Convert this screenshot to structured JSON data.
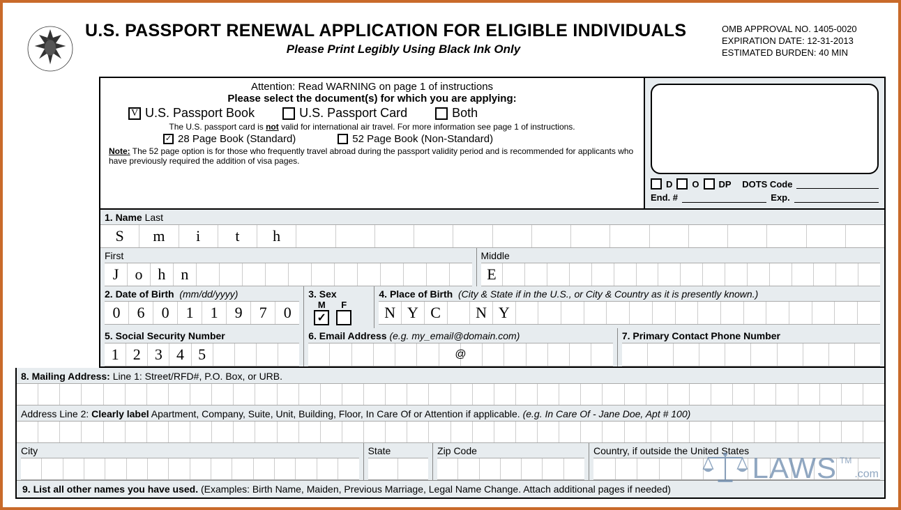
{
  "header": {
    "title": "U.S. PASSPORT RENEWAL APPLICATION FOR ELIGIBLE INDIVIDUALS",
    "subtitle": "Please Print Legibly Using Black Ink Only",
    "omb1": "OMB APPROVAL NO. 1405-0020",
    "omb2": "EXPIRATION DATE:  12-31-2013",
    "omb3": "ESTIMATED BURDEN: 40 MIN"
  },
  "attention": {
    "warning": "Attention: Read WARNING on page 1 of instructions",
    "select_title": "Please select the document(s) for which you are applying:",
    "opt_book": "U.S. Passport Book",
    "opt_card": "U.S. Passport Card",
    "opt_both": "Both",
    "book_checked": "V",
    "card_checked": "",
    "both_checked": "",
    "card_note_pre": "The U.S. passport card is ",
    "card_note_not": "not",
    "card_note_post": " valid for international air travel. For more information see page 1 of instructions.",
    "opt_28": "28 Page Book (Standard)",
    "opt_52": "52 Page Book (Non-Standard)",
    "p28_checked": "✓",
    "p52_checked": "",
    "note52_label": "Note:",
    "note52": " The 52 page option is for those who frequently travel abroad during the passport validity period and is recommended for applicants who have previously required the addition of visa pages."
  },
  "office": {
    "d": "D",
    "o": "O",
    "dp": "DP",
    "dots": "DOTS Code",
    "end": "End. #",
    "exp": "Exp."
  },
  "fields": {
    "f1_label": "1.  Name",
    "f1_last": "Last",
    "last_chars": [
      "S",
      "m",
      "i",
      "t",
      "h",
      "",
      "",
      "",
      "",
      "",
      "",
      "",
      "",
      "",
      "",
      "",
      "",
      "",
      "",
      ""
    ],
    "first_label": "First",
    "first_chars": [
      "J",
      "o",
      "h",
      "n",
      "",
      "",
      "",
      "",
      "",
      "",
      "",
      "",
      "",
      "",
      "",
      ""
    ],
    "middle_label": "Middle",
    "middle_chars": [
      "E",
      "",
      "",
      "",
      "",
      "",
      "",
      "",
      "",
      "",
      "",
      "",
      "",
      "",
      "",
      "",
      "",
      ""
    ],
    "f2_label": "2.  Date of Birth",
    "f2_hint": "(mm/dd/yyyy)",
    "dob_chars": [
      "0",
      "6",
      "0",
      "1",
      "1",
      "9",
      "7",
      "0"
    ],
    "f3_label": "3.  Sex",
    "sex_m": "M",
    "sex_f": "F",
    "sex_m_checked": "✓",
    "sex_f_checked": "",
    "f4_label": "4.  Place of Birth",
    "f4_hint": "(City & State if in the U.S., or City & Country as it is presently known.)",
    "pob_chars": [
      "N",
      "Y",
      "C",
      "",
      "N",
      "Y",
      "",
      "",
      "",
      "",
      "",
      "",
      "",
      "",
      "",
      "",
      "",
      "",
      "",
      "",
      "",
      ""
    ],
    "f5_label": "5.  Social Security Number",
    "ssn_chars": [
      "1",
      "2",
      "3",
      "4",
      "5",
      "",
      "",
      "",
      ""
    ],
    "f6_label": "6. Email Address",
    "f6_hint": "(e.g. my_email@domain.com)",
    "f7_label": "7. Primary Contact Phone Number",
    "f8_label": "8. Mailing Address:",
    "f8_hint": " Line 1: Street/RFD#, P.O. Box, or URB.",
    "addr2_pre": "Address Line 2: ",
    "addr2_b": "Clearly label",
    "addr2_post": " Apartment, Company, Suite, Unit, Building, Floor, In Care Of or Attention if applicable. ",
    "addr2_eg": "(e.g. In Care Of - Jane Doe, Apt # 100)",
    "city": "City",
    "state": "State",
    "zip": "Zip Code",
    "country": "Country, if outside the United States",
    "f9_label": "9. List all other names you have used.",
    "f9_hint": "(Examples: Birth Name, Maiden, Previous Marriage, Legal Name Change. Attach additional pages if needed)"
  },
  "watermark": {
    "text": "LAWS",
    "com": ".com",
    "tm": "TM"
  },
  "colors": {
    "border": "#c96a2a",
    "fieldbg": "#e7ecef",
    "wm": "#6b8aad"
  }
}
